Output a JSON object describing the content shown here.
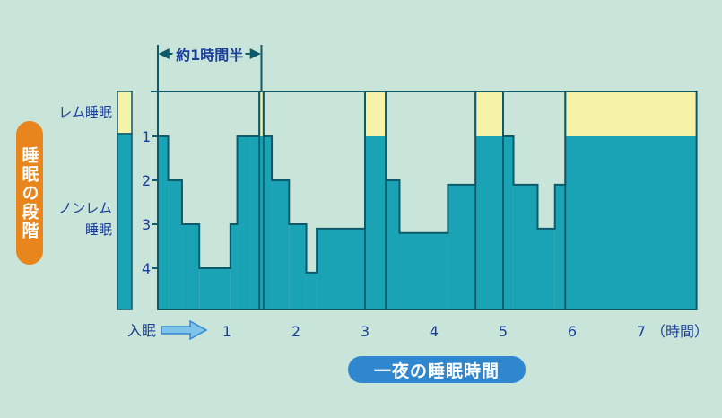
{
  "colors": {
    "background": "#c9e4d8",
    "nrem_fill": "#1aa3b4",
    "rem_fill": "#f6f3a8",
    "outline": "#0d5a6a",
    "label_text": "#1a3f9a",
    "y_title_bg": "#e8851c",
    "x_title_bg": "#2f88cf"
  },
  "chart_data": {
    "type": "area",
    "title": "",
    "ylabel": "睡眠の段階",
    "xlabel": "一夜の睡眠時間",
    "x_unit_label": "（時間）",
    "x_start_label": "入眠",
    "x_ticks": [
      1,
      2,
      3,
      4,
      5,
      6,
      7
    ],
    "xlim": [
      0,
      7.8
    ],
    "y_ticks": [
      "1",
      "2",
      "3",
      "4"
    ],
    "ylim": [
      4.9,
      0
    ],
    "y_category_labels": {
      "rem": "レム睡眠",
      "nrem": "ノンレム\n睡眠"
    },
    "annotation": {
      "text": "約1時間半",
      "x_range": [
        0,
        1.5
      ]
    },
    "stage_series": [
      {
        "x": [
          0.0,
          0.15
        ],
        "stage": 1
      },
      {
        "x": [
          0.15,
          0.35
        ],
        "stage": 2
      },
      {
        "x": [
          0.35,
          0.6
        ],
        "stage": 3
      },
      {
        "x": [
          0.6,
          1.05
        ],
        "stage": 4
      },
      {
        "x": [
          1.05,
          1.15
        ],
        "stage": 3
      },
      {
        "x": [
          1.15,
          1.35
        ],
        "stage": 1
      },
      {
        "x": [
          1.35,
          1.47
        ],
        "stage": 1
      },
      {
        "x": [
          1.47,
          1.53
        ],
        "stage": 0
      },
      {
        "x": [
          1.53,
          1.65
        ],
        "stage": 1
      },
      {
        "x": [
          1.65,
          1.9
        ],
        "stage": 2
      },
      {
        "x": [
          1.9,
          2.15
        ],
        "stage": 3
      },
      {
        "x": [
          2.15,
          2.3
        ],
        "stage": 4.1
      },
      {
        "x": [
          2.3,
          3.0
        ],
        "stage": 3.1
      },
      {
        "x": [
          3.0,
          3.3
        ],
        "stage": 0
      },
      {
        "x": [
          3.3,
          3.5
        ],
        "stage": 2
      },
      {
        "x": [
          3.5,
          4.2
        ],
        "stage": 3.2
      },
      {
        "x": [
          4.2,
          4.6
        ],
        "stage": 2.1
      },
      {
        "x": [
          4.6,
          5.0
        ],
        "stage": 0
      },
      {
        "x": [
          5.0,
          5.15
        ],
        "stage": 1
      },
      {
        "x": [
          5.15,
          5.5
        ],
        "stage": 2.1
      },
      {
        "x": [
          5.5,
          5.75
        ],
        "stage": 3.1
      },
      {
        "x": [
          5.75,
          5.9
        ],
        "stage": 2.1
      },
      {
        "x": [
          5.9,
          7.8
        ],
        "stage": 0
      }
    ],
    "rem_blocks": [
      {
        "x": [
          1.47,
          1.53
        ]
      },
      {
        "x": [
          3.0,
          3.3
        ]
      },
      {
        "x": [
          4.6,
          5.0
        ]
      },
      {
        "x": [
          5.9,
          7.8
        ]
      }
    ],
    "cycle_dividers": [
      1.47,
      1.53,
      3.0,
      3.3,
      4.6,
      5.0,
      5.9
    ]
  }
}
